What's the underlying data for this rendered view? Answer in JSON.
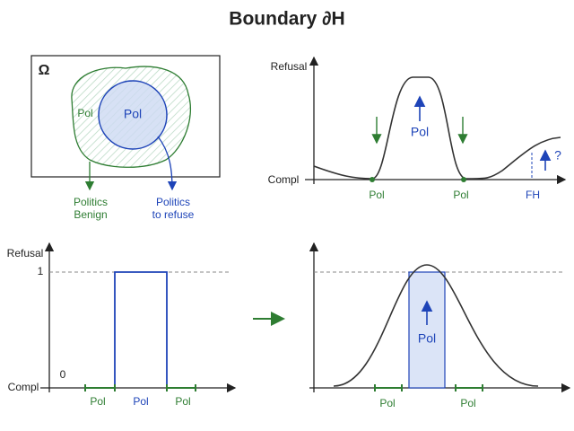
{
  "title": "Boundary ∂H",
  "panel_a": {
    "omega": "Ω",
    "outer_label": "Pol",
    "inner_label": "Pol",
    "benign": [
      "Politics",
      "Benign"
    ],
    "refuse": [
      "Politics",
      "to refuse"
    ]
  },
  "panel_b": {
    "y_label": "Refusal",
    "x_label": "Compl",
    "peak_label": "Pol",
    "x_labels": [
      "Pol",
      "Pol",
      "FH"
    ],
    "question": "?"
  },
  "panel_c": {
    "y_label": "Refusal",
    "one": 1,
    "zero": 0,
    "x_label": "Compl",
    "x_labels": [
      "Pol",
      "Pol",
      "Pol"
    ]
  },
  "panel_d": {
    "peak_label": "Pol",
    "x_labels": [
      "Pol",
      "Pol"
    ]
  }
}
